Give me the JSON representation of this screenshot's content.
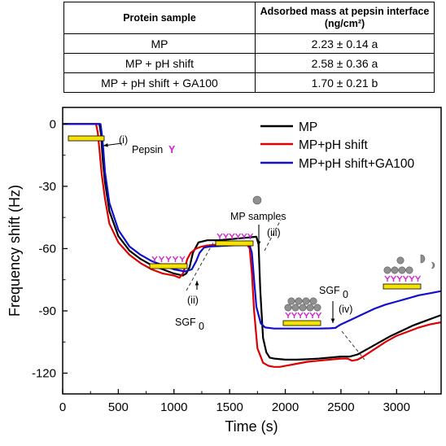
{
  "table": {
    "headers": [
      "Protein sample",
      "Adsorbed mass at pepsin interface (ng/cm²)"
    ],
    "rows": [
      [
        "MP",
        "2.23 ± 0.14 a"
      ],
      [
        "MP + pH shift",
        "2.58 ± 0.36 a"
      ],
      [
        "MP + pH shift + GA100",
        "1.70 ± 0.21 b"
      ]
    ]
  },
  "chart_data": {
    "type": "line",
    "title": "",
    "xlabel": "Time (s)",
    "ylabel": "Frequency shift (Hz)",
    "xlim": [
      0,
      3400
    ],
    "ylim": [
      -130,
      8
    ],
    "xticks": [
      0,
      500,
      1000,
      1500,
      2000,
      2500,
      3000
    ],
    "yticks": [
      0,
      -30,
      -60,
      -90,
      -120
    ],
    "legend_position": "top-right",
    "series": [
      {
        "name": "MP",
        "color": "#000000",
        "x": [
          0,
          330,
          345,
          360,
          380,
          420,
          500,
          600,
          700,
          800,
          900,
          1000,
          1080,
          1110,
          1140,
          1170,
          1220,
          1300,
          1400,
          1500,
          1600,
          1700,
          1740,
          1760,
          1775,
          1800,
          1830,
          1860,
          1900,
          2000,
          2100,
          2200,
          2300,
          2400,
          2500,
          2580,
          2650,
          2750,
          2850,
          2950,
          3050,
          3150,
          3250,
          3350,
          3400
        ],
        "y": [
          0,
          0,
          -5,
          -17,
          -28,
          -42,
          -54,
          -61,
          -65,
          -68,
          -70,
          -72,
          -73,
          -72,
          -69,
          -62,
          -57,
          -56,
          -56,
          -55.5,
          -55,
          -54.5,
          -54.3,
          -58,
          -80,
          -103,
          -110,
          -112.5,
          -113,
          -113.5,
          -113.5,
          -113.3,
          -113,
          -112.5,
          -112,
          -112,
          -111,
          -108,
          -105,
          -102,
          -99.5,
          -97,
          -95,
          -93,
          -92
        ]
      },
      {
        "name": "MP+pH shift",
        "color": "#dd0000",
        "x": [
          0,
          300,
          315,
          330,
          350,
          380,
          420,
          500,
          600,
          700,
          800,
          900,
          1000,
          1050,
          1080,
          1100,
          1120,
          1150,
          1200,
          1250,
          1300,
          1400,
          1500,
          1600,
          1650,
          1680,
          1700,
          1720,
          1750,
          1800,
          1850,
          1900,
          1950,
          2000,
          2100,
          2200,
          2300,
          2400,
          2500,
          2560,
          2600,
          2650,
          2700,
          2800,
          2900,
          3000,
          3100,
          3200,
          3300,
          3400
        ],
        "y": [
          0,
          0,
          -4,
          -12,
          -24,
          -36,
          -48,
          -57,
          -63,
          -67,
          -70,
          -72,
          -73,
          -74,
          -72,
          -69,
          -65,
          -62,
          -60,
          -59,
          -58.5,
          -58,
          -57.8,
          -57.6,
          -57.5,
          -60,
          -72,
          -90,
          -108,
          -115,
          -116.5,
          -117,
          -117,
          -116.5,
          -115.5,
          -114.5,
          -114,
          -113.5,
          -113,
          -113,
          -114,
          -113.5,
          -112,
          -108.5,
          -105,
          -102,
          -100,
          -98,
          -96.5,
          -95.5
        ]
      },
      {
        "name": "MP+pH shift+GA100",
        "color": "#1010cc",
        "x": [
          0,
          340,
          350,
          365,
          380,
          420,
          500,
          600,
          700,
          800,
          900,
          1000,
          1100,
          1160,
          1200,
          1230,
          1270,
          1320,
          1400,
          1500,
          1600,
          1650,
          1680,
          1700,
          1720,
          1740,
          1780,
          1820,
          1900,
          2000,
          2100,
          2200,
          2300,
          2400,
          2450,
          2470,
          2500,
          2600,
          2700,
          2800,
          2900,
          3000,
          3100,
          3200,
          3300,
          3400
        ],
        "y": [
          0,
          0,
          -4,
          -12,
          -23,
          -38,
          -51,
          -59,
          -63,
          -66,
          -68,
          -70,
          -71,
          -70,
          -66,
          -62,
          -59.5,
          -59,
          -58.8,
          -58.5,
          -58.3,
          -58.2,
          -58.5,
          -62,
          -75,
          -88,
          -96,
          -98,
          -98.5,
          -98.5,
          -98.5,
          -98.5,
          -98.5,
          -98.4,
          -98.2,
          -97.5,
          -96.5,
          -94,
          -91.5,
          -89,
          -87,
          -85.5,
          -84,
          -82.5,
          -81.5,
          -80.5
        ]
      }
    ],
    "annotations": {
      "step1": "(i)",
      "pepsin": "Pepsin",
      "pepsin_symbol": "Y",
      "step2": "(ii)",
      "sgf1_base": "SGF",
      "sgf1_sub": "0",
      "step3": "(iii)",
      "mp_samples": "MP samples",
      "step4": "(iv)",
      "sgf2_base": "SGF",
      "sgf2_sub": "0"
    },
    "colors": {
      "sensor": "#f5e200",
      "pepsin": "#d020d0",
      "protein": "#909090"
    }
  }
}
